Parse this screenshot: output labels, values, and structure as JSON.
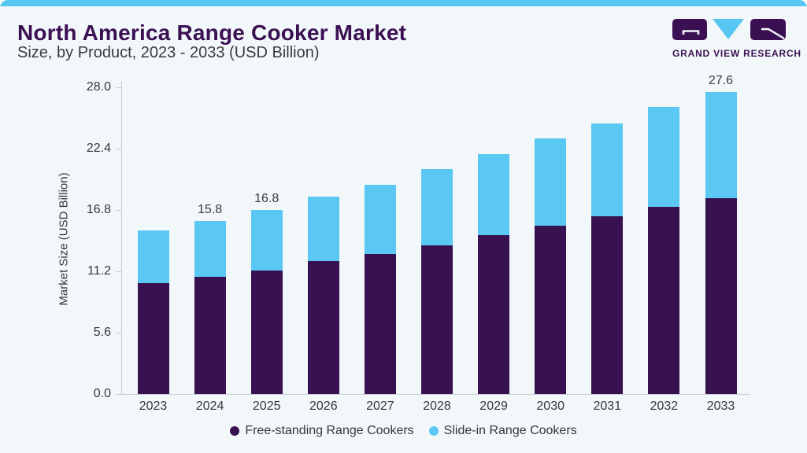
{
  "header": {
    "title": "North America Range Cooker Market",
    "subtitle": "Size, by Product, 2023 - 2033 (USD Billion)",
    "logo_text": "GRAND VIEW RESEARCH"
  },
  "colors": {
    "background": "#f2f7fa",
    "top_strip": "#58c6f2",
    "brand_purple": "#3b1053",
    "bar_purple": "#371150",
    "bar_blue": "#5bc7f3",
    "axis_line": "#c9ced6",
    "text_gray": "#37373c"
  },
  "chart_data": {
    "type": "bar",
    "stacked": true,
    "title": "North America Range Cooker Market Size, by Product, 2023 - 2033 (USD Billion)",
    "categories": [
      "2023",
      "2024",
      "2025",
      "2026",
      "2027",
      "2028",
      "2029",
      "2030",
      "2031",
      "2032",
      "2033"
    ],
    "series": [
      {
        "name": "Free-standing Range Cookers",
        "color": "#371150",
        "values": [
          10.1,
          10.7,
          11.3,
          12.1,
          12.8,
          13.6,
          14.5,
          15.4,
          16.2,
          17.1,
          17.9
        ]
      },
      {
        "name": "Slide-in Range Cookers",
        "color": "#5bc7f3",
        "values": [
          4.8,
          5.1,
          5.5,
          5.9,
          6.3,
          6.9,
          7.4,
          7.9,
          8.5,
          9.1,
          9.7
        ]
      }
    ],
    "totals": [
      14.9,
      15.8,
      16.8,
      18.0,
      19.1,
      20.5,
      21.9,
      23.3,
      24.7,
      26.2,
      27.6
    ],
    "value_labels": [
      "",
      "15.8",
      "16.8",
      "",
      "",
      "",
      "",
      "",
      "",
      "",
      "27.6"
    ],
    "xlabel": "",
    "ylabel": "Market Size (USD Billion)",
    "ylim": [
      0,
      28
    ],
    "yticks": [
      "0.0",
      "5.6",
      "11.2",
      "16.8",
      "22.4",
      "28.0"
    ],
    "grid": false,
    "legend_position": "bottom"
  }
}
